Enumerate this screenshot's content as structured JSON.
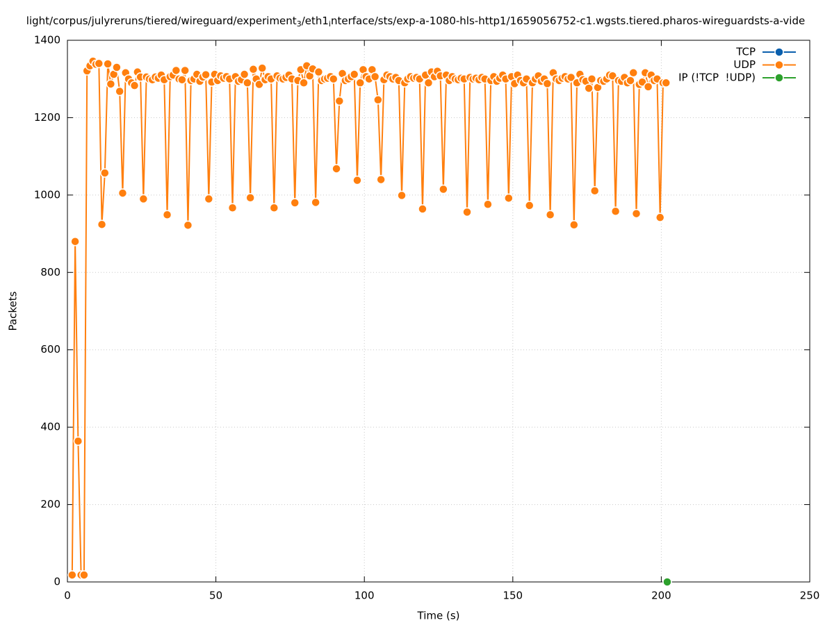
{
  "chart_data": {
    "type": "line",
    "title": [
      "light/corpus/julyreruns/tiered/wireguard/experiment",
      "3",
      "/eth1",
      "i",
      "nterface/sts/exp-a-1080-hls-http1/1659056752-c1.wgsts.tiered.pharos-wireguardsts-a-vide"
    ],
    "x_label": "Time (s)",
    "y_label": "Packets",
    "xlim": [
      0,
      250
    ],
    "xticks": [
      0,
      50,
      100,
      150,
      200,
      250
    ],
    "ylim": [
      0,
      1400
    ],
    "yticks": [
      0,
      200,
      400,
      600,
      800,
      1000,
      1200,
      1400
    ],
    "grid": true,
    "legend": "top-right",
    "series": [
      {
        "name": "TCP",
        "color": "#0a5fad",
        "x": [],
        "values": []
      },
      {
        "name": "UDP",
        "color": "#ff7f0e",
        "x": [
          1.6,
          2.6,
          3.6,
          4.6,
          5.6,
          6.6,
          7.6,
          8.6,
          9.6,
          10.6,
          11.6,
          12.6,
          13.6,
          14.6,
          15.6,
          16.6,
          17.6,
          18.6,
          19.6,
          20.6,
          21.6,
          22.6,
          23.6,
          24.6,
          25.6,
          26.6,
          27.6,
          28.6,
          29.6,
          30.6,
          31.6,
          32.6,
          33.6,
          34.6,
          35.6,
          36.6,
          37.6,
          38.6,
          39.6,
          40.6,
          41.6,
          42.6,
          43.6,
          44.6,
          45.6,
          46.6,
          47.6,
          48.6,
          49.6,
          50.6,
          51.6,
          52.6,
          53.6,
          54.6,
          55.6,
          56.6,
          57.6,
          58.6,
          59.6,
          60.6,
          61.6,
          62.6,
          63.6,
          64.6,
          65.6,
          66.6,
          67.6,
          68.6,
          69.6,
          70.6,
          71.6,
          72.6,
          73.6,
          74.6,
          75.6,
          76.6,
          77.6,
          78.6,
          79.6,
          80.6,
          81.6,
          82.6,
          83.6,
          84.6,
          85.6,
          86.6,
          87.6,
          88.6,
          89.6,
          90.6,
          91.6,
          92.6,
          93.6,
          94.6,
          95.6,
          96.6,
          97.6,
          98.6,
          99.6,
          100.6,
          101.6,
          102.6,
          103.6,
          104.6,
          105.6,
          106.6,
          107.6,
          108.6,
          109.6,
          110.6,
          111.6,
          112.6,
          113.6,
          114.6,
          115.6,
          116.6,
          117.6,
          118.6,
          119.6,
          120.6,
          121.6,
          122.6,
          123.6,
          124.6,
          125.6,
          126.6,
          127.6,
          128.6,
          129.6,
          130.6,
          131.6,
          132.6,
          133.6,
          134.6,
          135.6,
          136.6,
          137.6,
          138.6,
          139.6,
          140.6,
          141.6,
          142.6,
          143.6,
          144.6,
          145.6,
          146.6,
          147.6,
          148.6,
          149.6,
          150.6,
          151.6,
          152.6,
          153.6,
          154.6,
          155.6,
          156.6,
          157.6,
          158.6,
          159.6,
          160.6,
          161.6,
          162.6,
          163.6,
          164.6,
          165.6,
          166.6,
          167.6,
          168.6,
          169.6,
          170.6,
          171.6,
          172.6,
          173.6,
          174.6,
          175.6,
          176.6,
          177.6,
          178.6,
          179.6,
          180.6,
          181.6,
          182.6,
          183.6,
          184.6,
          185.6,
          186.6,
          187.6,
          188.6,
          189.6,
          190.6,
          191.6,
          192.6,
          193.6,
          194.6,
          195.6,
          196.6,
          197.6,
          198.6,
          199.6,
          200.6,
          201.6
        ],
        "values": [
          18,
          880,
          364,
          18,
          18,
          1321,
          1334,
          1346,
          1338,
          1340,
          924,
          1057,
          1339,
          1287,
          1312,
          1330,
          1268,
          1005,
          1316,
          1300,
          1290,
          1283,
          1318,
          1305,
          990,
          1305,
          1300,
          1298,
          1305,
          1302,
          1310,
          1298,
          949,
          1306,
          1310,
          1322,
          1300,
          1298,
          1322,
          922,
          1296,
          1300,
          1312,
          1294,
          1305,
          1311,
          990,
          1292,
          1312,
          1296,
          1308,
          1302,
          1306,
          1300,
          967,
          1306,
          1294,
          1298,
          1312,
          1290,
          993,
          1325,
          1300,
          1286,
          1328,
          1298,
          1306,
          1300,
          967,
          1308,
          1302,
          1300,
          1304,
          1310,
          1300,
          980,
          1296,
          1324,
          1290,
          1334,
          1308,
          1326,
          981,
          1318,
          1296,
          1300,
          1302,
          1306,
          1300,
          1068,
          1243,
          1314,
          1296,
          1300,
          1306,
          1312,
          1038,
          1290,
          1324,
          1306,
          1300,
          1324,
          1306,
          1246,
          1040,
          1298,
          1310,
          1306,
          1300,
          1304,
          1296,
          999,
          1290,
          1300,
          1306,
          1302,
          1304,
          1300,
          964,
          1310,
          1290,
          1318,
          1306,
          1320,
          1308,
          1015,
          1310,
          1296,
          1306,
          1300,
          1298,
          1302,
          1300,
          956,
          1304,
          1300,
          1302,
          1298,
          1304,
          1300,
          976,
          1296,
          1306,
          1294,
          1302,
          1310,
          1300,
          992,
          1306,
          1288,
          1310,
          1296,
          1290,
          1300,
          973,
          1290,
          1300,
          1308,
          1294,
          1300,
          1288,
          949,
          1316,
          1300,
          1296,
          1302,
          1306,
          1300,
          1304,
          923,
          1290,
          1312,
          1298,
          1294,
          1276,
          1300,
          1011,
          1278,
          1296,
          1294,
          1300,
          1310,
          1308,
          958,
          1296,
          1294,
          1304,
          1290,
          1296,
          1316,
          952,
          1286,
          1292,
          1316,
          1280,
          1310,
          1296,
          1300,
          942,
          1290,
          1290
        ]
      },
      {
        "name": "IP (!TCP  !UDP)",
        "color": "#2ca02c",
        "x": [
          202
        ],
        "values": [
          0
        ]
      }
    ]
  }
}
